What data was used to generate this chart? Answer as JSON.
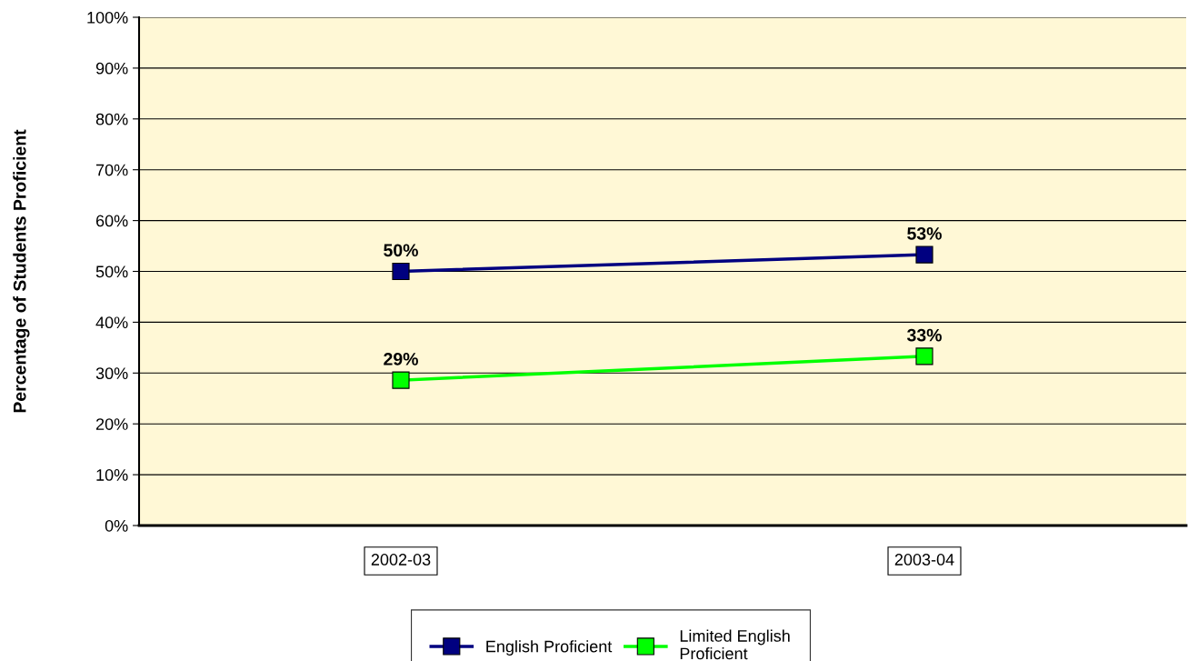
{
  "chart_data": {
    "type": "line",
    "ylabel": "Percentage of Students Proficient",
    "categories": [
      "2002-03",
      "2003-04"
    ],
    "series": [
      {
        "name": "English Proficient",
        "color": "#000080",
        "values": [
          50,
          53.3
        ],
        "value_labels": [
          "50%",
          "53%"
        ]
      },
      {
        "name": "Limited English\nProficient",
        "color": "#00ff00",
        "values": [
          28.6,
          33.3
        ],
        "value_labels": [
          "29%",
          "33%"
        ]
      }
    ],
    "ylim": [
      0,
      100
    ],
    "yticks": [
      {
        "value": 0,
        "label": "0%"
      },
      {
        "value": 10,
        "label": "10%"
      },
      {
        "value": 20,
        "label": "20%"
      },
      {
        "value": 30,
        "label": "30%"
      },
      {
        "value": 40,
        "label": "40%"
      },
      {
        "value": 50,
        "label": "50%"
      },
      {
        "value": 60,
        "label": "60%"
      },
      {
        "value": 70,
        "label": "70%"
      },
      {
        "value": 80,
        "label": "80%"
      },
      {
        "value": 90,
        "label": "90%"
      },
      {
        "value": 100,
        "label": "100%"
      }
    ],
    "grid": "y",
    "legend": "bottom",
    "marker": "square",
    "line_style": "solid"
  }
}
